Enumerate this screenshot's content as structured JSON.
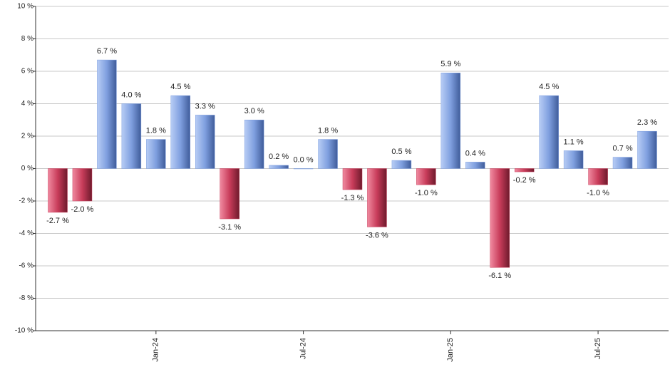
{
  "chart_data": {
    "type": "bar",
    "categories": [
      null,
      null,
      null,
      null,
      "Jan-24",
      null,
      null,
      null,
      null,
      null,
      "Jul-24",
      null,
      null,
      null,
      null,
      null,
      "Jan-25",
      null,
      null,
      null,
      null,
      null,
      "Jul-25",
      null,
      null
    ],
    "values": [
      -2.7,
      -2.0,
      6.7,
      4.0,
      1.8,
      4.5,
      3.3,
      -3.1,
      3.0,
      0.2,
      0.0,
      1.8,
      -1.3,
      -3.6,
      0.5,
      -1.0,
      5.9,
      0.4,
      -6.1,
      -0.2,
      4.5,
      1.1,
      -1.0,
      0.7,
      2.3
    ],
    "value_labels": [
      "-2.7 %",
      "-2.0 %",
      "6.7 %",
      "4.0 %",
      "1.8 %",
      "4.5 %",
      "3.3 %",
      "-3.1 %",
      "3.0 %",
      "0.2 %",
      "0.0 %",
      "1.8 %",
      "-1.3 %",
      "-3.6 %",
      "0.5 %",
      "-1.0 %",
      "5.9 %",
      "0.4 %",
      "-6.1 %",
      "-0.2 %",
      "4.5 %",
      "1.1 %",
      "-1.0 %",
      "0.7 %",
      "2.3 %"
    ],
    "positive_color": "#7f9fdf",
    "negative_color": "#c83c5a",
    "ylim": [
      -10,
      10
    ],
    "yticks": [
      {
        "value": -10,
        "label": "-10 %"
      },
      {
        "value": -8,
        "label": "-8 %"
      },
      {
        "value": -6,
        "label": "-6 %"
      },
      {
        "value": -4,
        "label": "-4 %"
      },
      {
        "value": -2,
        "label": "-2 %"
      },
      {
        "value": 0,
        "label": "0 %"
      },
      {
        "value": 2,
        "label": "2 %"
      },
      {
        "value": 4,
        "label": "4 %"
      },
      {
        "value": 6,
        "label": "6 %"
      },
      {
        "value": 8,
        "label": "8 %"
      },
      {
        "value": 10,
        "label": "10 %"
      }
    ],
    "grid": true
  }
}
